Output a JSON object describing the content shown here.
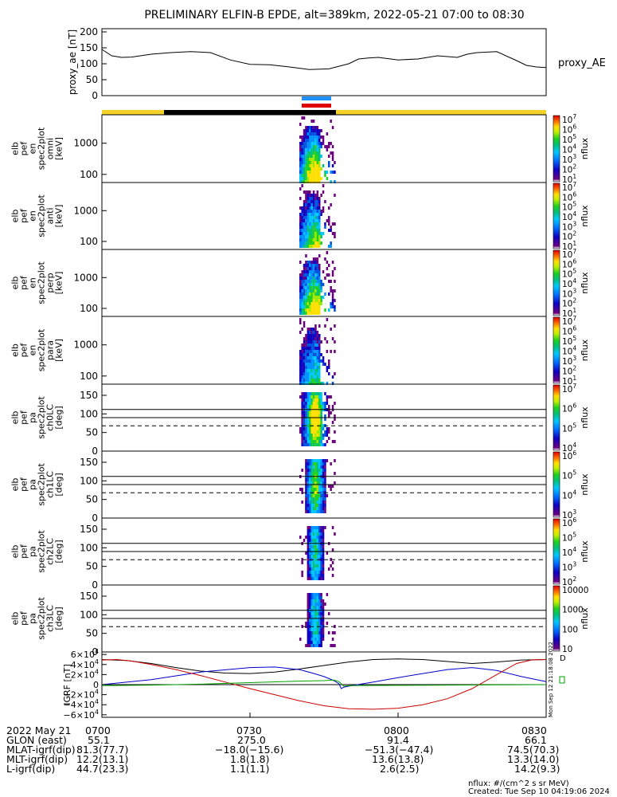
{
  "title": "PRELIMINARY ELFIN-B EPDE, alt=389km, 2022-05-21 07:00 to 08:30",
  "chart_data": [
    {
      "type": "line",
      "ylabel": "proxy_ae [nT]",
      "legend": "proxy_AE",
      "yticks": [
        "200",
        "150",
        "100",
        "50",
        "0"
      ],
      "ylim": [
        0,
        210
      ],
      "xlim": [
        0,
        90
      ],
      "x": [
        0,
        2,
        4,
        6,
        10,
        14,
        18,
        22,
        26,
        30,
        34,
        38,
        42,
        46,
        50,
        52,
        54,
        56,
        60,
        64,
        68,
        72,
        74,
        76,
        80,
        84,
        86,
        88,
        90
      ],
      "values": [
        145,
        125,
        120,
        121,
        130,
        135,
        138,
        135,
        112,
        98,
        97,
        90,
        82,
        84,
        100,
        115,
        118,
        120,
        112,
        115,
        125,
        120,
        130,
        135,
        138,
        110,
        95,
        90,
        88
      ]
    },
    {
      "type": "heatmap",
      "ylabel": "elb pef en spec2plot omni [keV]",
      "yticks": [
        "1000",
        "100"
      ],
      "colorbar_label": "nflux",
      "colorbar_ticks": [
        "10^7",
        "10^6",
        "10^5",
        "10^4",
        "10^3",
        "10^2",
        "10^1"
      ]
    },
    {
      "type": "heatmap",
      "ylabel": "elb pef en spec2plot anti [keV]",
      "yticks": [
        "1000",
        "100"
      ],
      "colorbar_label": "nflux",
      "colorbar_ticks": [
        "10^7",
        "10^6",
        "10^5",
        "10^4",
        "10^3",
        "10^2",
        "10^1"
      ]
    },
    {
      "type": "heatmap",
      "ylabel": "elb pef en spec2plot perp [keV]",
      "yticks": [
        "1000",
        "100"
      ],
      "colorbar_label": "nflux",
      "colorbar_ticks": [
        "10^7",
        "10^6",
        "10^5",
        "10^4",
        "10^3",
        "10^2",
        "10^1"
      ]
    },
    {
      "type": "heatmap",
      "ylabel": "elb pef en spec2plot para [keV]",
      "yticks": [
        "1000",
        "100"
      ],
      "colorbar_label": "nflux",
      "colorbar_ticks": [
        "10^7",
        "10^6",
        "10^5",
        "10^4",
        "10^3",
        "10^2",
        "10^1"
      ]
    },
    {
      "type": "heatmap",
      "ylabel": "elb pef pa spec2plot ch0LC [deg]",
      "yticks": [
        "150",
        "100",
        "50",
        "0"
      ],
      "colorbar_label": "nflux",
      "colorbar_ticks": [
        "10^7",
        "10^6",
        "10^5",
        "10^4"
      ]
    },
    {
      "type": "heatmap",
      "ylabel": "elb pef pa spec2plot ch1LC [deg]",
      "yticks": [
        "150",
        "100",
        "50",
        "0"
      ],
      "colorbar_label": "nflux",
      "colorbar_ticks": [
        "10^6",
        "10^5",
        "10^4",
        "10^3"
      ]
    },
    {
      "type": "heatmap",
      "ylabel": "elb pef pa spec2plot ch2LC [deg]",
      "yticks": [
        "150",
        "100",
        "50",
        "0"
      ],
      "colorbar_label": "nflux",
      "colorbar_ticks": [
        "10^6",
        "10^5",
        "10^4",
        "10^3",
        "10^2"
      ]
    },
    {
      "type": "heatmap",
      "ylabel": "elb pef pa spec2plot ch3LC [deg]",
      "yticks": [
        "150",
        "100",
        "50",
        "0"
      ],
      "colorbar_label": "nflux",
      "colorbar_ticks": [
        "10000",
        "1000",
        "100",
        "10"
      ]
    },
    {
      "type": "line",
      "ylabel": "IGRF [nT]",
      "yticks": [
        "6×10^4",
        "4×10^4",
        "2×10^4",
        "0",
        "−2×10^4",
        "−4×10^4",
        "−6×10^4"
      ],
      "ylim": [
        -65000,
        65000
      ],
      "xlim": [
        0,
        90
      ],
      "series": [
        {
          "color": "#000000",
          "x": [
            0,
            5,
            10,
            15,
            20,
            25,
            30,
            35,
            40,
            45,
            50,
            55,
            60,
            65,
            70,
            75,
            80,
            85,
            90
          ],
          "values": [
            50000,
            48000,
            42000,
            34000,
            27000,
            23000,
            22000,
            25000,
            31000,
            38000,
            45000,
            50000,
            51000,
            50000,
            46000,
            42000,
            45000,
            49000,
            50000
          ]
        },
        {
          "color": "#0000cc",
          "x": [
            0,
            10,
            20,
            30,
            35,
            40,
            43,
            45,
            47,
            48,
            48.5,
            49,
            50,
            55,
            60,
            65,
            70,
            75,
            80,
            85,
            90
          ],
          "values": [
            0,
            10000,
            25000,
            34000,
            35000,
            30000,
            22000,
            16000,
            8000,
            2000,
            -8000,
            -5000,
            -3000,
            5000,
            14000,
            22000,
            30000,
            34000,
            28000,
            16000,
            6000
          ]
        },
        {
          "color": "#cc0000",
          "x": [
            0,
            3,
            6,
            10,
            15,
            20,
            25,
            30,
            35,
            40,
            45,
            50,
            55,
            60,
            65,
            70,
            75,
            80,
            84,
            87,
            90
          ],
          "values": [
            49000,
            50000,
            47000,
            40000,
            30000,
            18000,
            5000,
            -8000,
            -20000,
            -32000,
            -42000,
            -48000,
            -49000,
            -47000,
            -40000,
            -28000,
            -8000,
            20000,
            42000,
            49000,
            50000
          ]
        },
        {
          "color": "#00a000",
          "x": [
            0,
            10,
            20,
            30,
            40,
            45,
            47,
            48,
            49,
            50,
            60,
            70,
            80,
            90
          ],
          "values": [
            -2000,
            -1000,
            1000,
            4000,
            7000,
            8000,
            9000,
            6000,
            -3000,
            -2000,
            -1500,
            -1000,
            -500,
            0
          ]
        }
      ]
    }
  ],
  "time_ticks": [
    "0700",
    "0730",
    "0800",
    "0830"
  ],
  "footer": {
    "date": "2022 May 21",
    "rows": [
      {
        "label": "GLON (east)",
        "values": [
          "55.1",
          "275.0",
          "91.4",
          "66.1"
        ]
      },
      {
        "label": "MLAT-igrf(dip)",
        "values": [
          "81.3(77.7)",
          "−18.0(−15.6)",
          "−51.3(−47.4)",
          "74.5(70.3)"
        ]
      },
      {
        "label": "MLT-igrf(dip)",
        "values": [
          "12.2(13.1)",
          "1.8(1.8)",
          "13.6(13.8)",
          "13.3(14.0)"
        ]
      },
      {
        "label": "L-igrf(dip)",
        "values": [
          "44.7(23.3)",
          "1.1(1.1)",
          "2.6(2.5)",
          "14.2(9.3)"
        ]
      }
    ],
    "units_note": "nflux: #/(cm^2 s sr MeV)",
    "created": "Created: Tue Sep 10 04:19:06 2024",
    "side_stamp": "Mon Sep 12 21:18:08 2022"
  },
  "colors": {
    "state_yellow": "#f5d22a",
    "state_black": "#000000",
    "bar_blue": "#1e90ff",
    "bar_red": "#e00000"
  }
}
